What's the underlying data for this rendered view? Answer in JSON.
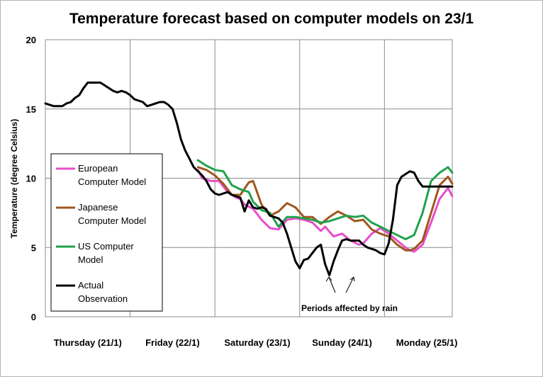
{
  "chart_data": {
    "type": "line",
    "title": "Temperature forecast based on computer models on 23/1",
    "xlabel": "",
    "ylabel": "Temperature (degree Celsius)",
    "ylim": [
      0,
      20
    ],
    "yticks": [
      0,
      5,
      10,
      15,
      20
    ],
    "xlim": [
      0,
      4.8
    ],
    "x_unit": "days from start of Thursday (21/1)",
    "x_tick_labels": [
      "Thursday (21/1)",
      "Friday (22/1)",
      "Saturday (23/1)",
      "Sunday (24/1)",
      "Monday (25/1)"
    ],
    "grid": true,
    "legend_position": "left",
    "annotation": "Periods affected by rain",
    "series": [
      {
        "name": "European Computer Model",
        "color": "#e84ecb",
        "x": [
          1.8,
          1.85,
          1.95,
          2.05,
          2.1,
          2.15,
          2.25,
          2.3,
          2.35,
          2.45,
          2.5,
          2.55,
          2.65,
          2.75,
          2.85,
          2.95,
          3.05,
          3.15,
          3.25,
          3.3,
          3.4,
          3.5,
          3.6,
          3.7,
          3.75,
          3.85,
          3.95,
          4.05,
          4.15,
          4.25,
          4.3,
          4.35,
          4.45,
          4.55,
          4.65,
          4.75,
          4.8
        ],
        "values": [
          10.6,
          10.0,
          9.8,
          9.8,
          9.4,
          9.0,
          8.6,
          8.5,
          8.1,
          7.8,
          7.4,
          7.0,
          6.4,
          6.3,
          7.0,
          7.1,
          7.0,
          6.8,
          6.2,
          6.5,
          5.8,
          6.0,
          5.5,
          5.2,
          5.3,
          6.0,
          6.4,
          6.0,
          5.5,
          5.0,
          4.8,
          4.7,
          5.2,
          6.8,
          8.5,
          9.3,
          8.7
        ]
      },
      {
        "name": "Japanese Computer Model",
        "color": "#a0561e",
        "x": [
          1.8,
          1.9,
          2.0,
          2.1,
          2.2,
          2.3,
          2.4,
          2.45,
          2.55,
          2.65,
          2.75,
          2.85,
          2.95,
          3.05,
          3.15,
          3.25,
          3.35,
          3.45,
          3.55,
          3.65,
          3.75,
          3.85,
          3.95,
          4.05,
          4.15,
          4.25,
          4.3,
          4.35,
          4.45,
          4.55,
          4.65,
          4.75,
          4.8
        ],
        "values": [
          10.8,
          10.6,
          10.2,
          9.6,
          8.8,
          8.8,
          9.7,
          9.8,
          8.1,
          7.3,
          7.6,
          8.2,
          7.9,
          7.2,
          7.2,
          6.7,
          7.2,
          7.6,
          7.3,
          6.9,
          7.0,
          6.3,
          6.0,
          5.8,
          5.2,
          4.8,
          4.8,
          4.9,
          5.5,
          7.5,
          9.5,
          10.1,
          9.6
        ]
      },
      {
        "name": "US Computer Model",
        "color": "#1fa34d",
        "x": [
          1.8,
          1.9,
          2.0,
          2.1,
          2.2,
          2.3,
          2.4,
          2.45,
          2.55,
          2.65,
          2.75,
          2.85,
          2.95,
          3.05,
          3.15,
          3.25,
          3.35,
          3.45,
          3.55,
          3.65,
          3.75,
          3.85,
          3.95,
          4.05,
          4.15,
          4.25,
          4.35,
          4.45,
          4.55,
          4.65,
          4.75,
          4.8
        ],
        "values": [
          11.3,
          10.9,
          10.6,
          10.5,
          9.5,
          9.2,
          9.0,
          8.3,
          7.7,
          7.5,
          6.5,
          7.2,
          7.2,
          7.1,
          7.0,
          6.8,
          6.9,
          7.1,
          7.3,
          7.2,
          7.3,
          6.8,
          6.5,
          6.2,
          5.9,
          5.6,
          5.9,
          7.5,
          9.8,
          10.4,
          10.8,
          10.4
        ]
      },
      {
        "name": "Actual Observation",
        "color": "#000000",
        "x": [
          0.0,
          0.05,
          0.1,
          0.2,
          0.25,
          0.3,
          0.35,
          0.4,
          0.45,
          0.5,
          0.55,
          0.6,
          0.65,
          0.7,
          0.75,
          0.8,
          0.85,
          0.9,
          0.95,
          1.0,
          1.05,
          1.1,
          1.15,
          1.2,
          1.25,
          1.3,
          1.35,
          1.4,
          1.45,
          1.5,
          1.55,
          1.6,
          1.65,
          1.7,
          1.75,
          1.8,
          1.85,
          1.9,
          1.95,
          2.0,
          2.05,
          2.1,
          2.15,
          2.2,
          2.25,
          2.3,
          2.35,
          2.4,
          2.45,
          2.5,
          2.55,
          2.6,
          2.65,
          2.7,
          2.75,
          2.8,
          2.85,
          2.9,
          2.95,
          3.0,
          3.05,
          3.1,
          3.15,
          3.2,
          3.25,
          3.3,
          3.35,
          3.4,
          3.45,
          3.5,
          3.55,
          3.6,
          3.65,
          3.7,
          3.75,
          3.8,
          3.85,
          3.9,
          3.95,
          4.0,
          4.05,
          4.1,
          4.15,
          4.2,
          4.25,
          4.3,
          4.35,
          4.4,
          4.45,
          4.5,
          4.55,
          4.6,
          4.65,
          4.7,
          4.75,
          4.8
        ],
        "values": [
          15.4,
          15.3,
          15.2,
          15.2,
          15.4,
          15.5,
          15.8,
          16.0,
          16.5,
          16.9,
          16.9,
          16.9,
          16.9,
          16.7,
          16.5,
          16.3,
          16.2,
          16.3,
          16.2,
          16.0,
          15.7,
          15.6,
          15.5,
          15.2,
          15.3,
          15.4,
          15.5,
          15.5,
          15.3,
          15.0,
          14.0,
          12.8,
          12.0,
          11.4,
          10.8,
          10.5,
          10.2,
          9.8,
          9.2,
          8.9,
          8.8,
          8.9,
          9.0,
          8.8,
          8.7,
          8.6,
          7.6,
          8.4,
          7.9,
          7.8,
          7.9,
          7.8,
          7.3,
          7.2,
          7.1,
          6.8,
          6.0,
          5.0,
          4.0,
          3.5,
          4.1,
          4.2,
          4.6,
          5.0,
          5.2,
          3.8,
          3.0,
          4.0,
          4.8,
          5.5,
          5.6,
          5.5,
          5.5,
          5.5,
          5.2,
          5.0,
          4.9,
          4.8,
          4.6,
          4.5,
          5.3,
          7.0,
          9.5,
          10.1,
          10.3,
          10.5,
          10.4,
          9.8,
          9.4,
          9.4,
          9.4,
          9.4,
          9.4,
          9.4,
          9.4,
          9.4
        ]
      }
    ]
  }
}
